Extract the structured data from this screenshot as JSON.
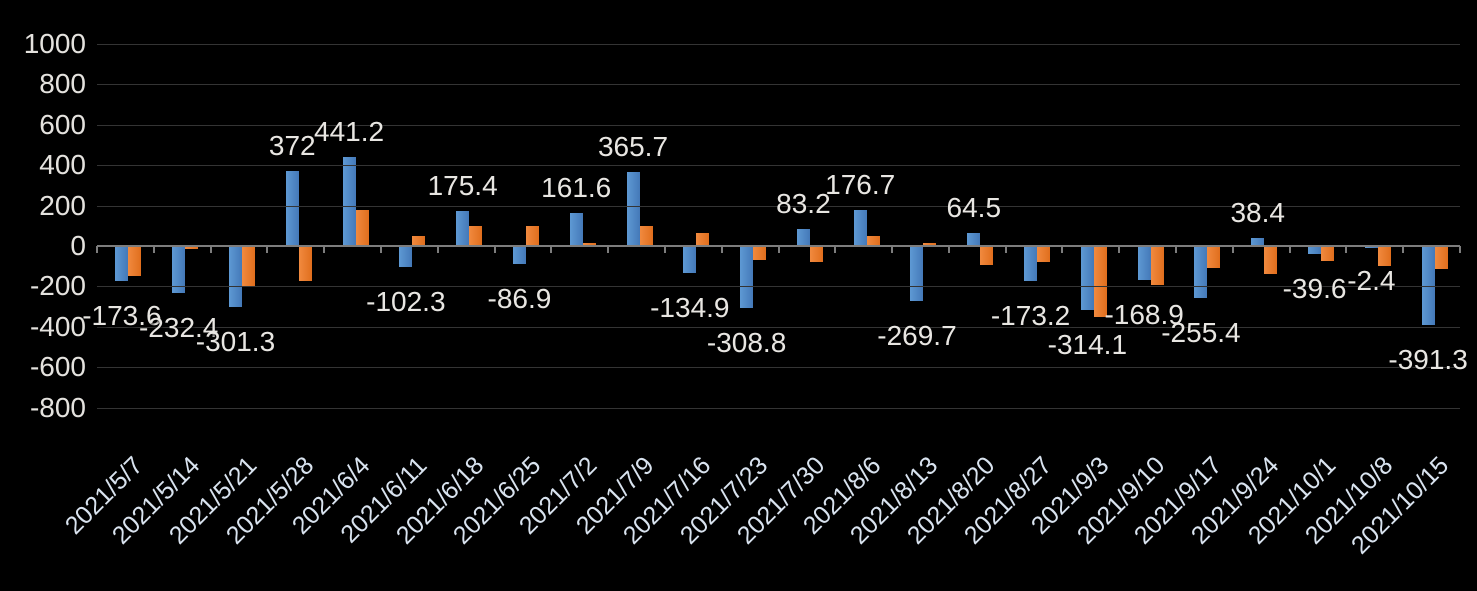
{
  "chart_data": {
    "type": "bar",
    "title": "",
    "legend": "none",
    "grid": true,
    "background_color": "#000000",
    "categories": [
      "2021/5/7",
      "2021/5/14",
      "2021/5/21",
      "2021/5/28",
      "2021/6/4",
      "2021/6/11",
      "2021/6/18",
      "2021/6/25",
      "2021/7/2",
      "2021/7/9",
      "2021/7/16",
      "2021/7/23",
      "2021/7/30",
      "2021/8/6",
      "2021/8/13",
      "2021/8/20",
      "2021/8/27",
      "2021/9/3",
      "2021/9/10",
      "2021/9/17",
      "2021/9/24",
      "2021/10/1",
      "2021/10/8",
      "2021/10/15"
    ],
    "series": [
      {
        "name": "series1-blue",
        "color": "#4d8ac8",
        "values": [
          -173.6,
          -232.4,
          -301.3,
          372,
          441.2,
          -102.3,
          175.4,
          -86.9,
          161.6,
          365.7,
          -134.9,
          -308.8,
          83.2,
          176.7,
          -269.7,
          64.5,
          -173.2,
          -314.1,
          -168.9,
          -255.4,
          38.4,
          -39.6,
          -2.4,
          -391.3
        ],
        "data_labels": [
          "-173.6",
          "-232.4",
          "-301.3",
          "372",
          "441.2",
          "-102.3",
          "175.4",
          "-86.9",
          "161.6",
          "365.7",
          "-134.9",
          "-308.8",
          "83.2",
          "176.7",
          "-269.7",
          "64.5",
          "-173.2",
          "-314.1",
          "-168.9",
          "-255.4",
          "38.4",
          "-39.6",
          "-2.4",
          "-391.3"
        ]
      },
      {
        "name": "series2-orange",
        "color": "#ed7d31",
        "values_estimated": true,
        "values": [
          -150,
          -15,
          -200,
          -175,
          180,
          50,
          100,
          100,
          15,
          100,
          65,
          -70,
          -80,
          50,
          15,
          -95,
          -80,
          -350,
          -195,
          -110,
          -140,
          -75,
          -100,
          -115
        ],
        "data_labels": null
      }
    ],
    "y_axis": {
      "ticks": [
        1000,
        800,
        600,
        400,
        200,
        0,
        -200,
        -400,
        -600,
        -800
      ],
      "min": -800,
      "max": 1000,
      "tick_interval": 200
    },
    "x_axis": {
      "label_rotation_deg": 45,
      "tick_marks": true
    }
  },
  "colors": {
    "background": "#000000",
    "series1": "#4d8ac8",
    "series2": "#ed7d31",
    "gridline": "#343434",
    "axis_line": "#7d7d7d",
    "axis_text": "#e4e2de",
    "data_label_text": "#e8e6e2"
  }
}
